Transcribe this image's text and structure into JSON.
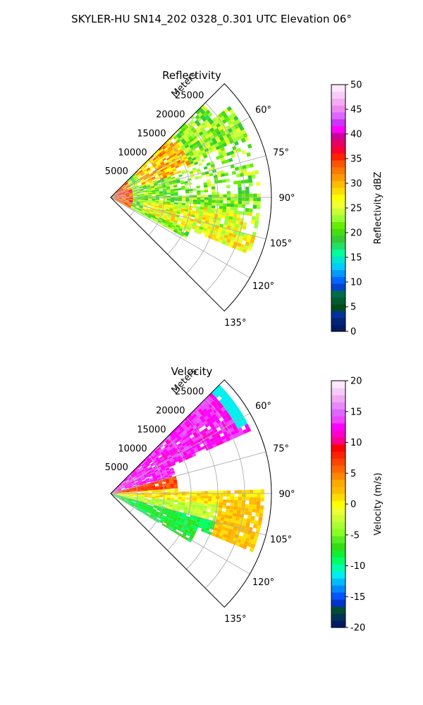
{
  "figure": {
    "suptitle": "SKYLER-HU  SN14_202  0328_0.301 UTC Elevation 06°"
  },
  "colors": {
    "reflectivity_scale": [
      "#001a66",
      "#00237a",
      "#003399",
      "#004d1a",
      "#005c33",
      "#006b4d",
      "#0044cc",
      "#0066ff",
      "#0099ff",
      "#00ccff",
      "#00e6cc",
      "#00ff99",
      "#22e066",
      "#33cc33",
      "#44dd11",
      "#66ee00",
      "#99ff33",
      "#ccff33",
      "#eeff33",
      "#ffff00",
      "#ffdd00",
      "#ffbb00",
      "#ff9900",
      "#ff7700",
      "#ff5500",
      "#ff2200",
      "#ff0033",
      "#e60066",
      "#cc0099",
      "#ff00ff",
      "#cc33ff",
      "#dd66ff",
      "#ee88ee",
      "#f4aaf4",
      "#f8ccf8",
      "#fbe6fb"
    ],
    "velocity_scale": [
      "#001a66",
      "#003355",
      "#004d33",
      "#0033cc",
      "#0055ff",
      "#0088ff",
      "#00bbff",
      "#00eeee",
      "#00ffaa",
      "#00ff66",
      "#11ee33",
      "#33dd11",
      "#55ee22",
      "#88ff22",
      "#aaff33",
      "#ccff33",
      "#eeff33",
      "#ffff00",
      "#ffdd00",
      "#ffbb00",
      "#ffaa00",
      "#ff8800",
      "#ff6600",
      "#ff4400",
      "#ff2200",
      "#ff0000",
      "#ff0088",
      "#ff00cc",
      "#ff00ff",
      "#ee44ff",
      "#dd66ff",
      "#e888ff",
      "#f0aaf0",
      "#f6ccf6",
      "#fbe6fb"
    ]
  },
  "chart_data": [
    {
      "type": "heatmap",
      "projection": "polar-sector",
      "title": "Reflectivity",
      "range_label": "Meters",
      "range_ticks": [
        "5000",
        "10000",
        "15000",
        "20000",
        "25000"
      ],
      "range_tick_values": [
        5000,
        10000,
        15000,
        20000,
        25000
      ],
      "range_max": 30000,
      "azimuth_range_deg": [
        45,
        135
      ],
      "azimuth_ticks": [
        "60°",
        "75°",
        "90°",
        "105°",
        "120°",
        "135°"
      ],
      "azimuth_tick_values": [
        60,
        75,
        90,
        105,
        120,
        135
      ],
      "grid": true,
      "colorbar": {
        "label": "Reflectivity dBZ",
        "range": [
          0,
          50
        ],
        "ticks": [
          "0",
          "5",
          "10",
          "15",
          "20",
          "25",
          "30",
          "35",
          "40",
          "45",
          "50"
        ],
        "tick_values": [
          0,
          5,
          10,
          15,
          20,
          25,
          30,
          35,
          40,
          45,
          50
        ],
        "placement": "right"
      }
    },
    {
      "type": "heatmap",
      "projection": "polar-sector",
      "title": "Velocity",
      "range_label": "Meters",
      "range_ticks": [
        "5000",
        "10000",
        "15000",
        "20000",
        "25000"
      ],
      "range_tick_values": [
        5000,
        10000,
        15000,
        20000,
        25000
      ],
      "range_max": 30000,
      "azimuth_range_deg": [
        45,
        135
      ],
      "azimuth_ticks": [
        "60°",
        "75°",
        "90°",
        "105°",
        "120°",
        "135°"
      ],
      "azimuth_tick_values": [
        60,
        75,
        90,
        105,
        120,
        135
      ],
      "grid": true,
      "colorbar": {
        "label": "Velocity (m/s)",
        "range": [
          -20,
          20
        ],
        "ticks": [
          "-20",
          "-15",
          "-10",
          "-5",
          "0",
          "5",
          "10",
          "15",
          "20"
        ],
        "tick_values": [
          -20,
          -15,
          -10,
          -5,
          0,
          5,
          10,
          15,
          20
        ],
        "placement": "right"
      }
    }
  ]
}
